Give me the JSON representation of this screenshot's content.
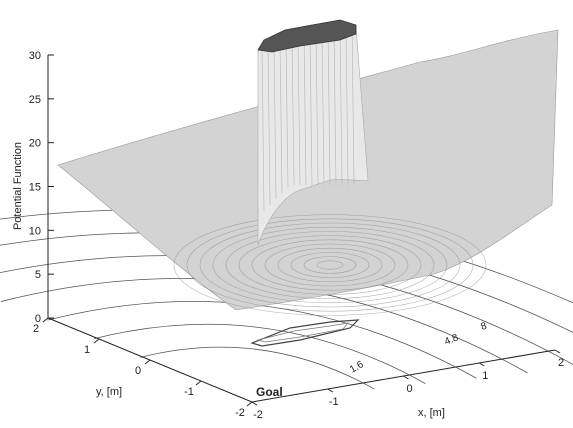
{
  "chart_data": {
    "type": "surface3d",
    "title": "",
    "zlabel": "Potential Function",
    "xlabel": "x, [m]",
    "ylabel": "y, [m]",
    "xlim": [
      -2,
      2
    ],
    "ylim": [
      -2,
      2
    ],
    "zlim": [
      0,
      30
    ],
    "z_ticks": [
      "0",
      "5",
      "10",
      "15",
      "20",
      "25",
      "30"
    ],
    "x_ticks": [
      "-2",
      "-1",
      "0",
      "1",
      "2"
    ],
    "y_ticks": [
      "-2",
      "-1",
      "0",
      "1",
      "2"
    ],
    "annotation": "Goal",
    "contour_levels": [
      "1.6",
      "4.8",
      "8"
    ],
    "surface": {
      "corner_values": {
        "x_min_y_max": 17.6,
        "x_max_y_max": 20.5,
        "x_min_y_min": 6.0,
        "x_max_y_min": 13.5
      },
      "minimum": 4.5,
      "obstacle_top": 30
    }
  }
}
